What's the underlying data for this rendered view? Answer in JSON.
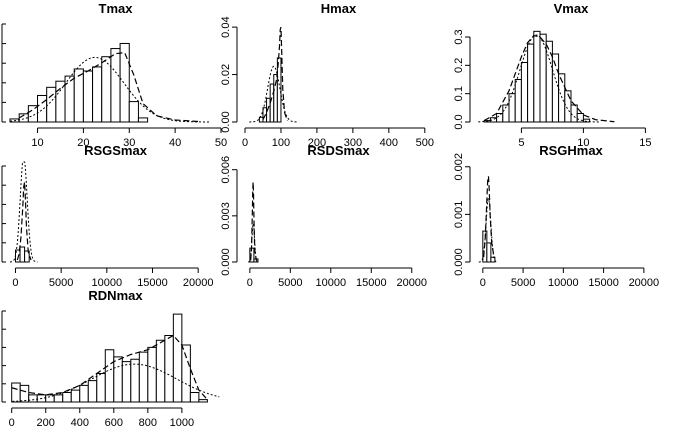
{
  "chart_data": [
    {
      "type": "bar",
      "title": "Tmax",
      "xlim": [
        4,
        50
      ],
      "x_ticks": [
        10,
        20,
        30,
        40,
        50
      ],
      "ylim": [
        0,
        0.1
      ],
      "y_ticks": [],
      "bin_edges": [
        4,
        6,
        8,
        10,
        12,
        14,
        16,
        18,
        20,
        22,
        24,
        26,
        28,
        30,
        32,
        34
      ],
      "density": [
        0.003,
        0.008,
        0.016,
        0.026,
        0.034,
        0.04,
        0.045,
        0.052,
        0.05,
        0.054,
        0.064,
        0.072,
        0.077,
        0.02,
        0.004
      ],
      "curve_dotted_normal": {
        "mean": 22.5,
        "sd": 6.3
      },
      "curve_dashed_x": [
        6,
        9,
        12,
        15,
        18,
        21,
        24,
        27,
        29,
        31,
        33,
        36,
        40,
        45
      ],
      "curve_dashed_y": [
        0.004,
        0.012,
        0.022,
        0.033,
        0.043,
        0.05,
        0.058,
        0.067,
        0.068,
        0.046,
        0.018,
        0.006,
        0.002,
        0.0005
      ]
    },
    {
      "type": "bar",
      "title": "Hmax",
      "xlim": [
        0,
        520
      ],
      "x_ticks": [
        0,
        100,
        200,
        300,
        400,
        500
      ],
      "ylim": [
        0,
        0.043
      ],
      "y_ticks": [
        0.0,
        0.02,
        0.04
      ],
      "bin_edges": [
        40,
        50,
        60,
        70,
        80,
        90,
        100
      ],
      "density": [
        0.002,
        0.006,
        0.01,
        0.016,
        0.02,
        0.027
      ],
      "curve_dotted_normal": {
        "mean": 80,
        "sd": 17
      },
      "curve_dashed_x": [
        50,
        60,
        70,
        80,
        88,
        92,
        96,
        98,
        100,
        102,
        105,
        110,
        118
      ],
      "curve_dashed_y": [
        0.001,
        0.004,
        0.008,
        0.013,
        0.018,
        0.024,
        0.032,
        0.039,
        0.04,
        0.03,
        0.014,
        0.004,
        0.0005
      ]
    },
    {
      "type": "bar",
      "title": "Vmax",
      "xlim": [
        1.5,
        16.5
      ],
      "x_ticks": [
        5,
        10,
        15
      ],
      "ylim": [
        0,
        0.36
      ],
      "y_ticks": [
        0.0,
        0.1,
        0.2,
        0.3
      ],
      "bin_edges": [
        2,
        2.5,
        3,
        3.5,
        4,
        4.5,
        5,
        5.5,
        6,
        6.5,
        7,
        7.5,
        8,
        8.5,
        9,
        9.5,
        10,
        10.5
      ],
      "density": [
        0.005,
        0.015,
        0.03,
        0.06,
        0.1,
        0.15,
        0.21,
        0.275,
        0.32,
        0.31,
        0.285,
        0.24,
        0.17,
        0.11,
        0.06,
        0.03,
        0.01
      ],
      "curve_dotted_normal": {
        "mean": 6.2,
        "sd": 1.3
      },
      "curve_dashed_x": [
        2,
        3,
        4,
        5,
        5.5,
        6,
        6.5,
        7,
        7.5,
        8,
        9,
        10,
        11,
        12.5
      ],
      "curve_dashed_y": [
        0.005,
        0.03,
        0.11,
        0.23,
        0.28,
        0.305,
        0.3,
        0.275,
        0.23,
        0.17,
        0.075,
        0.025,
        0.008,
        0.001
      ]
    },
    {
      "type": "bar",
      "title": "RSGSmax",
      "xlim": [
        -600,
        22500
      ],
      "x_ticks": [
        0,
        5000,
        10000,
        15000,
        20000
      ],
      "ylim": [
        0,
        0.001
      ],
      "y_ticks": [],
      "bin_edges": [
        0,
        500,
        1000,
        1500
      ],
      "density": [
        0.00012,
        0.00015,
        0.00011
      ],
      "curve_dotted_normal": {
        "mean": 900,
        "sd": 380
      },
      "curve_dashed_x": [
        200,
        400,
        600,
        800,
        900,
        1000,
        1100,
        1200,
        1400,
        1700
      ],
      "curve_dashed_y": [
        2e-05,
        8e-05,
        0.00025,
        0.00055,
        0.00075,
        0.0008,
        0.0006,
        0.00035,
        0.0001,
        2e-05
      ]
    },
    {
      "type": "bar",
      "title": "RSDSmax",
      "xlim": [
        -600,
        22500
      ],
      "x_ticks": [
        0,
        5000,
        10000,
        15000,
        20000
      ],
      "ylim": [
        0,
        0.0065
      ],
      "y_ticks": [
        0.0,
        0.003,
        0.006
      ],
      "bin_edges": [
        0,
        500,
        1000
      ],
      "density": [
        0.0009,
        0.0002
      ],
      "curve_dotted_normal": {
        "mean": 420,
        "sd": 160
      },
      "curve_dashed_x": [
        100,
        200,
        300,
        350,
        400,
        450,
        500,
        600,
        800
      ],
      "curve_dashed_y": [
        0.0001,
        0.0008,
        0.003,
        0.0045,
        0.0052,
        0.0045,
        0.003,
        0.0008,
        0.0001
      ]
    },
    {
      "type": "bar",
      "title": "RSGHmax",
      "xlim": [
        -600,
        22500
      ],
      "x_ticks": [
        0,
        5000,
        10000,
        15000,
        20000
      ],
      "ylim": [
        0,
        0.0021
      ],
      "y_ticks": [
        0.0,
        0.001,
        0.002
      ],
      "bin_edges": [
        0,
        500,
        1000,
        1500
      ],
      "density": [
        0.00065,
        0.0004,
        0.0001
      ],
      "curve_dotted_normal": {
        "mean": 700,
        "sd": 300
      },
      "curve_dashed_x": [
        100,
        300,
        500,
        600,
        700,
        800,
        900,
        1100,
        1400
      ],
      "curve_dashed_y": [
        0.0001,
        0.0005,
        0.0013,
        0.0017,
        0.0018,
        0.0015,
        0.001,
        0.0004,
        0.0001
      ]
    },
    {
      "type": "bar",
      "title": "RDNmax",
      "xlim": [
        -10,
        1230
      ],
      "x_ticks": [
        0,
        200,
        400,
        600,
        800,
        1000
      ],
      "ylim": [
        0,
        0.004
      ],
      "y_ticks": [],
      "bin_edges": [
        0,
        50,
        100,
        150,
        200,
        250,
        300,
        350,
        400,
        450,
        500,
        550,
        600,
        650,
        700,
        750,
        800,
        850,
        900,
        950,
        1000,
        1050,
        1100,
        1150
      ],
      "density": [
        0.0008,
        0.0007,
        0.0003,
        0.0003,
        0.0003,
        0.0003,
        0.0004,
        0.0005,
        0.0007,
        0.0009,
        0.0012,
        0.0022,
        0.0019,
        0.0017,
        0.0018,
        0.0021,
        0.0023,
        0.0026,
        0.0028,
        0.0037,
        0.0024,
        0.0004,
        0.0001
      ],
      "curve_dotted_normal": {
        "mean": 720,
        "sd": 250
      },
      "curve_dashed_x": [
        0,
        50,
        100,
        200,
        300,
        400,
        500,
        600,
        700,
        800,
        900,
        950,
        1000,
        1050,
        1100,
        1150
      ],
      "curve_dashed_y": [
        0.0006,
        0.0005,
        0.0004,
        0.0003,
        0.0004,
        0.0007,
        0.0012,
        0.0017,
        0.002,
        0.0022,
        0.0026,
        0.0028,
        0.0024,
        0.0014,
        0.0005,
        0.0001
      ]
    }
  ]
}
